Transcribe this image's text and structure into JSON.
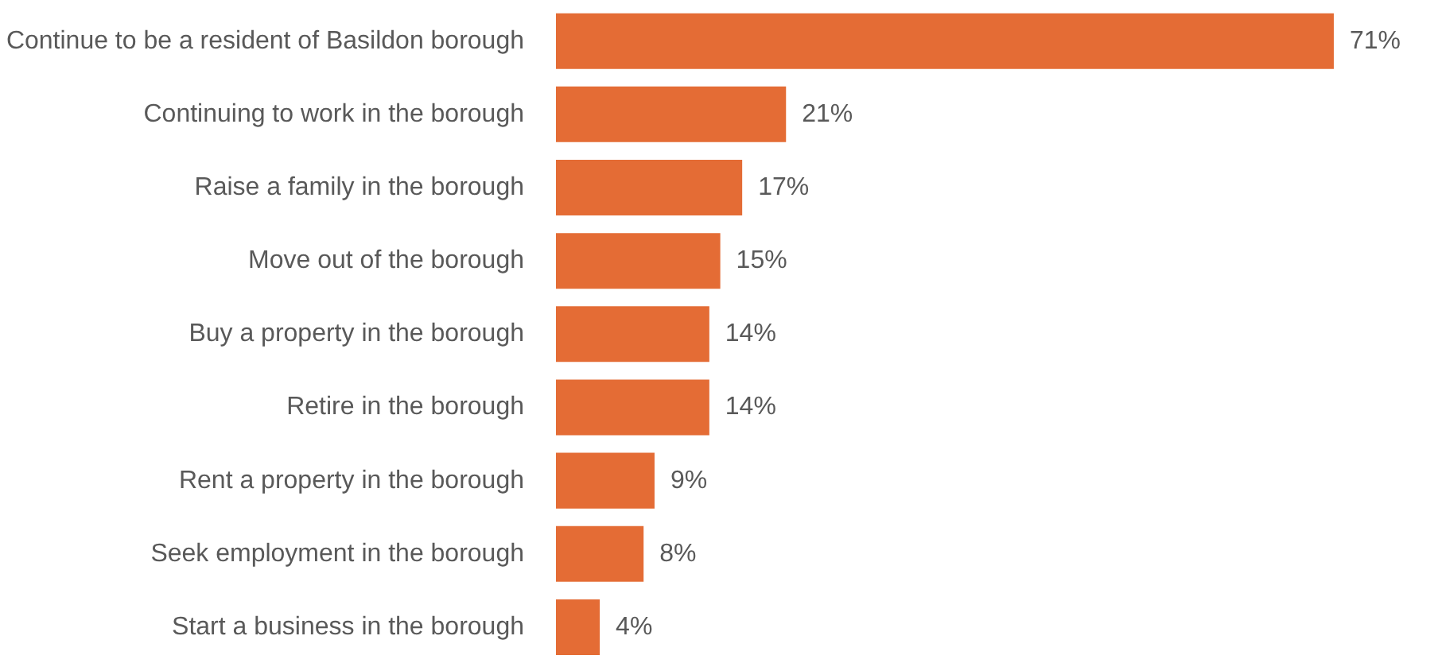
{
  "chart_data": {
    "type": "bar",
    "orientation": "horizontal",
    "categories": [
      "Continue to be a resident of Basildon borough",
      "Continuing to work in the borough",
      "Raise a family in the borough",
      "Move out of the borough",
      "Buy a property in the borough",
      "Retire in the borough",
      "Rent a property in the borough",
      "Seek employment in the borough",
      "Start a business in the borough"
    ],
    "values": [
      71,
      21,
      17,
      15,
      14,
      14,
      9,
      8,
      4
    ],
    "value_labels": [
      "71%",
      "21%",
      "17%",
      "15%",
      "14%",
      "14%",
      "9%",
      "8%",
      "4%"
    ],
    "color": "#e46c35",
    "grid": false,
    "tick_labels": "y"
  }
}
